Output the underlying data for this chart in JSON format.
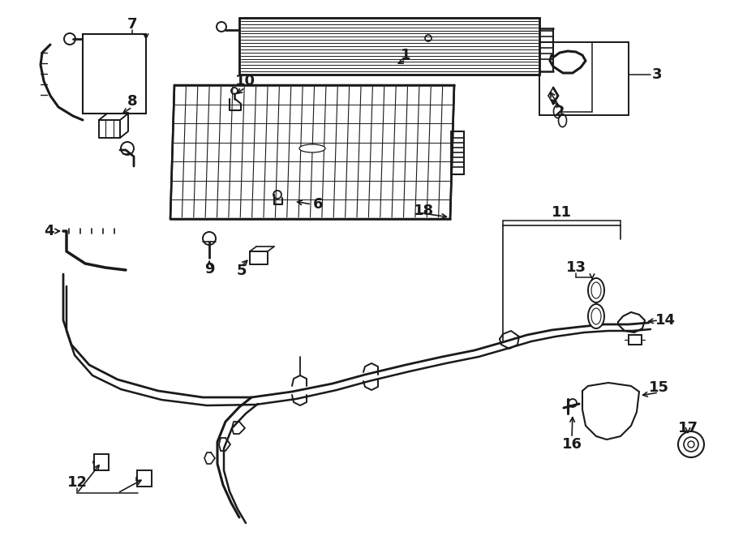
{
  "bg_color": "#ffffff",
  "lc": "#1a1a1a",
  "lw": 1.4,
  "figsize": [
    9.0,
    6.61
  ],
  "dpi": 100
}
